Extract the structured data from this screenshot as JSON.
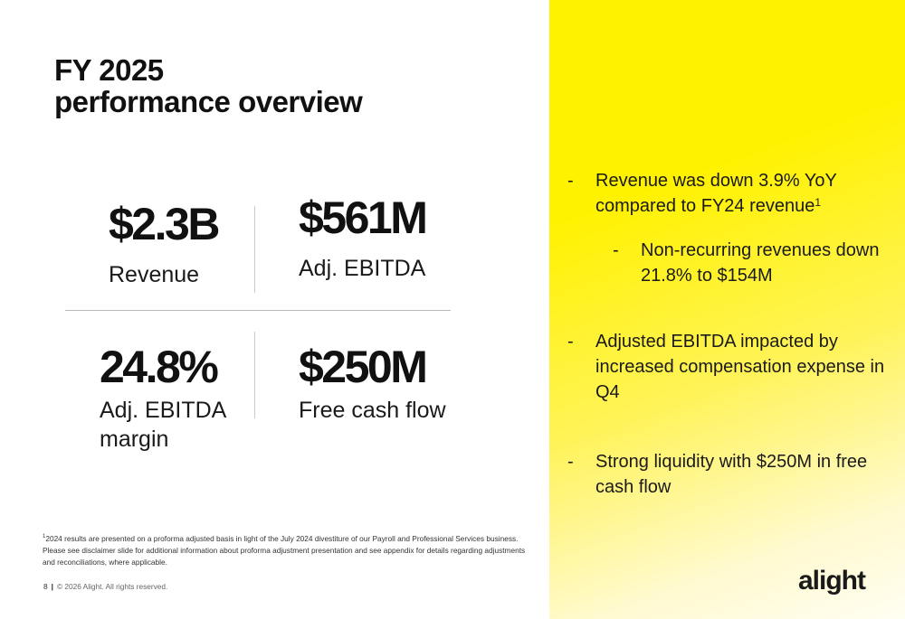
{
  "title": {
    "line1": "FY 2025",
    "line2": "performance overview"
  },
  "metrics": [
    {
      "value": "$2.3B",
      "label": "Revenue"
    },
    {
      "value": "$561M",
      "label": "Adj. EBITDA"
    },
    {
      "value": "24.8%",
      "label_line1": "Adj. EBITDA",
      "label_line2": "margin"
    },
    {
      "value": "$250M",
      "label": "Free cash flow"
    }
  ],
  "bullets": {
    "b1": {
      "dash": "-",
      "line1": "Revenue was down 3.9% YoY",
      "line2": "compared to FY24 revenue",
      "ref": "1"
    },
    "b2": {
      "dash": "-",
      "line1": "Non-recurring revenues down",
      "line2": "21.8% to $154M"
    },
    "b3": {
      "dash": "-",
      "line1": "Adjusted EBITDA impacted by",
      "line2": "increased compensation expense in",
      "line3": "Q4"
    },
    "b4": {
      "dash": "-",
      "line1": "Strong liquidity with $250M in free",
      "line2": "cash flow"
    }
  },
  "footnote": {
    "ref": "1",
    "text": "2024 results are presented on a proforma adjusted basis in light of the July 2024 divestiture of our Payroll and Professional Services business. Please see disclaimer slide for additional information about proforma adjustment presentation and see appendix for details regarding adjustments and reconciliations, where applicable."
  },
  "footer": {
    "page": "8",
    "separator": "|",
    "copyright": "© 2026 Alight. All rights reserved."
  },
  "brand": {
    "logo_text": "alight",
    "accent_color": "#fff200"
  }
}
